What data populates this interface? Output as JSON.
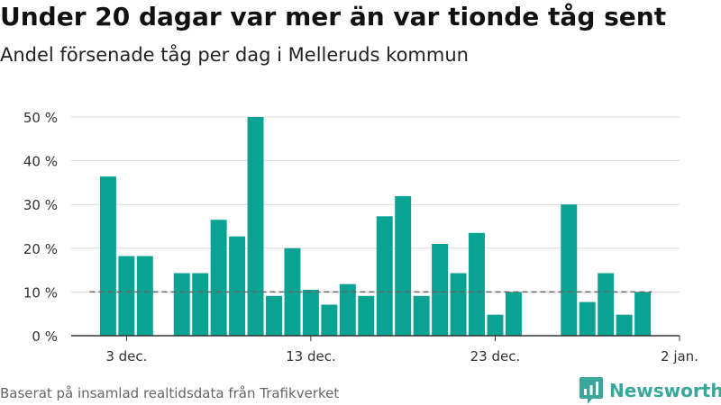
{
  "header": {
    "title": "Under 20 dagar var mer än var tionde tåg sent",
    "subtitle": "Andel försenade tåg per dag i Melleruds kommun"
  },
  "footer": {
    "source": "Baserat på insamlad realtidsdata från Trafikverket",
    "brand": "Newsworthy"
  },
  "colors": {
    "bar": "#0aa393",
    "grid": "#d9d9d9",
    "reference_line": "#666666",
    "brand": "#3aa79a"
  },
  "chart_data": {
    "type": "bar",
    "title": "Under 20 dagar var mer än var tionde tåg sent",
    "subtitle": "Andel försenade tåg per dag i Melleruds kommun",
    "xlabel": "",
    "ylabel": "",
    "x_axis": {
      "type": "date",
      "start": "2019-11-30",
      "end": "2020-01-02",
      "ticks": [
        {
          "date": "2019-12-03",
          "label": "3 dec."
        },
        {
          "date": "2019-12-13",
          "label": "13 dec."
        },
        {
          "date": "2019-12-23",
          "label": "23 dec."
        },
        {
          "date": "2020-01-02",
          "label": "2 jan."
        }
      ]
    },
    "y_axis": {
      "ylim": [
        0,
        50
      ],
      "ticks": [
        0,
        10,
        20,
        30,
        40,
        50
      ],
      "tick_labels": [
        "0 %",
        "10 %",
        "20 %",
        "30 %",
        "40 %",
        "50 %"
      ],
      "grid": true
    },
    "reference_line": {
      "value": 10,
      "style": "dashed"
    },
    "series": [
      {
        "points": [
          {
            "date": "2019-12-02",
            "value": 36.4
          },
          {
            "date": "2019-12-03",
            "value": 18.2
          },
          {
            "date": "2019-12-04",
            "value": 18.2
          },
          {
            "date": "2019-12-06",
            "value": 14.3
          },
          {
            "date": "2019-12-07",
            "value": 14.3
          },
          {
            "date": "2019-12-08",
            "value": 26.5
          },
          {
            "date": "2019-12-09",
            "value": 22.7
          },
          {
            "date": "2019-12-10",
            "value": 50
          },
          {
            "date": "2019-12-11",
            "value": 9.1
          },
          {
            "date": "2019-12-12",
            "value": 20
          },
          {
            "date": "2019-12-13",
            "value": 10.5
          },
          {
            "date": "2019-12-14",
            "value": 7.1
          },
          {
            "date": "2019-12-15",
            "value": 11.8
          },
          {
            "date": "2019-12-16",
            "value": 9.1
          },
          {
            "date": "2019-12-17",
            "value": 27.3
          },
          {
            "date": "2019-12-18",
            "value": 31.9
          },
          {
            "date": "2019-12-19",
            "value": 9.1
          },
          {
            "date": "2019-12-20",
            "value": 21
          },
          {
            "date": "2019-12-21",
            "value": 14.3
          },
          {
            "date": "2019-12-22",
            "value": 23.5
          },
          {
            "date": "2019-12-23",
            "value": 4.8
          },
          {
            "date": "2019-12-24",
            "value": 10
          },
          {
            "date": "2019-12-27",
            "value": 30
          },
          {
            "date": "2019-12-28",
            "value": 7.7
          },
          {
            "date": "2019-12-29",
            "value": 14.3
          },
          {
            "date": "2019-12-30",
            "value": 4.8
          },
          {
            "date": "2019-12-31",
            "value": 10
          }
        ]
      }
    ]
  }
}
